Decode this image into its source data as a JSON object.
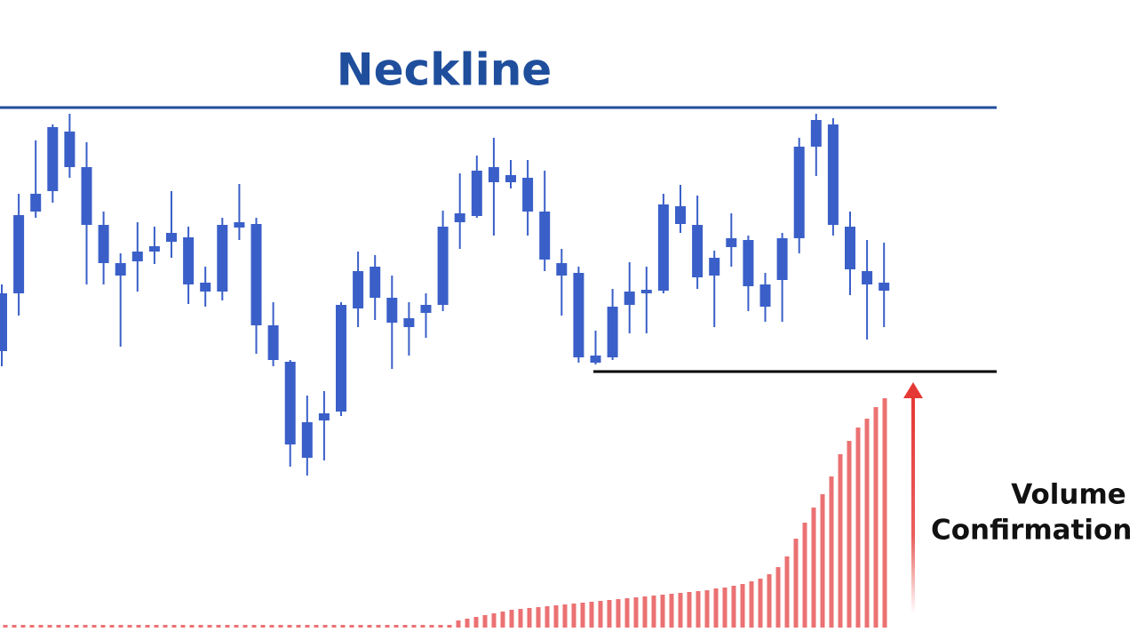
{
  "chart_data": [
    {
      "type": "candlestick",
      "title": "Neckline",
      "color": "#3a5fc8",
      "ylim": [
        0,
        720
      ],
      "neckline": 599,
      "support": 302,
      "neckline_color": "#1f4e9c",
      "support_color": "#000000",
      "open": [
        325,
        390,
        482,
        505,
        572,
        532,
        467,
        424,
        426,
        437,
        448,
        453,
        392,
        392,
        470,
        468,
        354,
        313,
        205,
        247,
        257,
        373,
        420,
        385,
        362,
        368,
        377,
        470,
        477,
        515,
        523,
        520,
        482,
        424,
        413,
        320,
        318,
        377,
        390,
        393,
        488,
        467,
        410,
        442,
        450,
        400,
        405,
        452,
        555,
        580,
        465,
        415,
        393
      ],
      "high": [
        400,
        502,
        562,
        580,
        592,
        560,
        482,
        435,
        470,
        465,
        505,
        465,
        420,
        475,
        513,
        475,
        380,
        315,
        275,
        280,
        380,
        437,
        433,
        410,
        380,
        390,
        483,
        525,
        545,
        565,
        540,
        540,
        528,
        440,
        420,
        348,
        395,
        425,
        420,
        502,
        512,
        500,
        438,
        480,
        455,
        413,
        458,
        565,
        592,
        587,
        482,
        450,
        447
      ],
      "low": [
        308,
        365,
        475,
        492,
        520,
        400,
        400,
        330,
        392,
        423,
        430,
        378,
        375,
        382,
        450,
        322,
        308,
        195,
        185,
        202,
        252,
        352,
        360,
        305,
        320,
        340,
        370,
        440,
        475,
        455,
        508,
        455,
        415,
        365,
        312,
        310,
        315,
        345,
        345,
        390,
        458,
        395,
        352,
        420,
        370,
        358,
        358,
        435,
        522,
        455,
        388,
        338,
        352
      ],
      "close": [
        390,
        478,
        502,
        577,
        532,
        467,
        424,
        410,
        437,
        443,
        458,
        400,
        402,
        467,
        464,
        354,
        315,
        220,
        245,
        255,
        377,
        415,
        385,
        357,
        352,
        377,
        465,
        480,
        528,
        532,
        515,
        482,
        428,
        410,
        318,
        312,
        375,
        392,
        394,
        490,
        468,
        408,
        430,
        452,
        398,
        375,
        452,
        555,
        585,
        467,
        417,
        400,
        402
      ]
    },
    {
      "type": "bar",
      "color": "#e8585a",
      "ylim": [
        0,
        290
      ],
      "values": [
        3,
        3,
        3,
        3,
        3,
        3,
        3,
        3,
        3,
        3,
        3,
        3,
        3,
        3,
        3,
        3,
        3,
        3,
        3,
        3,
        3,
        3,
        3,
        3,
        3,
        3,
        3,
        3,
        3,
        3,
        3,
        3,
        3,
        3,
        3,
        3,
        3,
        3,
        3,
        3,
        3,
        3,
        3,
        3,
        3,
        3,
        3,
        3,
        3,
        3,
        3,
        8,
        10,
        12,
        14,
        16,
        18,
        20,
        21,
        22,
        23,
        24,
        25,
        26,
        27,
        28,
        29,
        30,
        31,
        32,
        33,
        34,
        35,
        36,
        37,
        38,
        39,
        40,
        41,
        42,
        44,
        45,
        47,
        49,
        52,
        55,
        60,
        68,
        80,
        100,
        118,
        135,
        150,
        170,
        195,
        210,
        225,
        235,
        248,
        258
      ],
      "annotation": [
        "Volume",
        "Confirmation S"
      ]
    }
  ]
}
